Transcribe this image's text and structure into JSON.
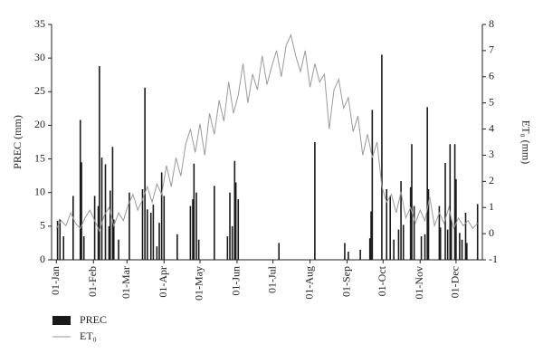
{
  "chart_data": {
    "type": "combo",
    "y_label": "PREC (mm)",
    "y2_label": "ET₀ (mm)",
    "xlim": [
      -3,
      357
    ],
    "xticks": [
      {
        "value": 1,
        "label": "01-Jan"
      },
      {
        "value": 32,
        "label": "01-Feb"
      },
      {
        "value": 60,
        "label": "01-Mar"
      },
      {
        "value": 91,
        "label": "01-Apr"
      },
      {
        "value": 121,
        "label": "01-May"
      },
      {
        "value": 152,
        "label": "01-Jun"
      },
      {
        "value": 182,
        "label": "01-Jul"
      },
      {
        "value": 213,
        "label": "01-Aug"
      },
      {
        "value": 244,
        "label": "01-Sep"
      },
      {
        "value": 274,
        "label": "01-Oct"
      },
      {
        "value": 305,
        "label": "01-Nov"
      },
      {
        "value": 335,
        "label": "01-Dec"
      }
    ],
    "ylim": [
      0,
      35
    ],
    "yticks": [
      0,
      5,
      10,
      15,
      20,
      25,
      30,
      35
    ],
    "y2lim": [
      -1,
      8
    ],
    "y2ticks": [
      -1,
      0,
      1,
      2,
      3,
      4,
      5,
      6,
      7,
      8
    ],
    "series": [
      {
        "name": "PREC",
        "type": "bar",
        "color": "#1a1a1a",
        "x": [
          2,
          4,
          7,
          15,
          21,
          22,
          24,
          33,
          36,
          37,
          39,
          42,
          45,
          46,
          48,
          49,
          53,
          62,
          73,
          75,
          77,
          80,
          82,
          85,
          87,
          89,
          91,
          102,
          113,
          115,
          116,
          118,
          120,
          133,
          144,
          146,
          148,
          150,
          151,
          153,
          187,
          217,
          242,
          245,
          255,
          263,
          264,
          265,
          273,
          277,
          280,
          283,
          287,
          289,
          291,
          297,
          298,
          300,
          306,
          309,
          311,
          312,
          321,
          322,
          326,
          328,
          330,
          331,
          334,
          335,
          338,
          340,
          343,
          344,
          353
        ],
        "values": [
          5.8,
          6,
          3.5,
          9.5,
          20.8,
          14.5,
          3.5,
          9.5,
          8,
          28.8,
          15.2,
          14.2,
          5,
          10.3,
          16.8,
          6,
          3,
          10,
          10.5,
          25.6,
          7.5,
          7,
          8.2,
          2,
          5.5,
          13,
          9.5,
          3.8,
          8,
          9,
          14.3,
          10,
          3,
          11,
          3.5,
          10,
          5,
          14.7,
          11.5,
          9,
          2.5,
          17.5,
          2.5,
          1.2,
          1.5,
          3.2,
          7.2,
          22.3,
          30.5,
          10.5,
          9.5,
          3,
          4.5,
          11.7,
          5.2,
          10.8,
          17.2,
          8,
          3.5,
          3.8,
          22.7,
          10.5,
          8,
          4.8,
          14.4,
          4.5,
          17.2,
          6,
          17.2,
          12,
          4,
          3,
          7,
          2.5,
          8.3
        ]
      },
      {
        "name": "ET₀",
        "type": "line",
        "axis": "y2",
        "color": "#9a9a9a",
        "x": [
          1,
          5,
          9,
          13,
          17,
          21,
          25,
          29,
          33,
          37,
          41,
          45,
          49,
          53,
          57,
          61,
          65,
          69,
          73,
          77,
          81,
          85,
          89,
          93,
          97,
          101,
          105,
          109,
          113,
          117,
          121,
          125,
          129,
          133,
          137,
          141,
          145,
          149,
          153,
          157,
          161,
          165,
          169,
          173,
          177,
          181,
          185,
          189,
          193,
          197,
          201,
          205,
          209,
          213,
          217,
          221,
          225,
          229,
          233,
          237,
          241,
          245,
          249,
          253,
          257,
          261,
          265,
          269,
          273,
          277,
          281,
          285,
          289,
          293,
          297,
          301,
          305,
          309,
          313,
          317,
          321,
          325,
          329,
          333,
          337,
          341,
          345,
          349,
          353
        ],
        "values": [
          0.2,
          0.5,
          0.3,
          0.8,
          0.4,
          0.2,
          0.6,
          0.9,
          0.5,
          0.1,
          0.7,
          1.0,
          0.3,
          0.8,
          0.5,
          1.1,
          1.5,
          0.9,
          1.3,
          1.8,
          1.2,
          1.9,
          1.5,
          2.6,
          1.8,
          2.9,
          2.2,
          3.4,
          4.0,
          3.1,
          4.2,
          3.0,
          4.6,
          3.8,
          5.1,
          4.3,
          5.8,
          4.6,
          5.3,
          6.5,
          5.0,
          6.1,
          5.5,
          6.8,
          5.7,
          6.4,
          7.0,
          6.0,
          7.2,
          7.6,
          6.8,
          6.2,
          7.0,
          5.6,
          6.5,
          5.8,
          6.1,
          4.0,
          5.5,
          5.9,
          4.8,
          5.2,
          3.9,
          4.5,
          3.0,
          3.8,
          2.9,
          3.5,
          1.8,
          1.2,
          1.5,
          0.8,
          1.6,
          0.6,
          1.0,
          0.4,
          0.9,
          0.5,
          1.4,
          0.3,
          0.8,
          0.4,
          1.0,
          0.2,
          0.6,
          0.3,
          0.5,
          0.2,
          0.4
        ]
      }
    ]
  }
}
